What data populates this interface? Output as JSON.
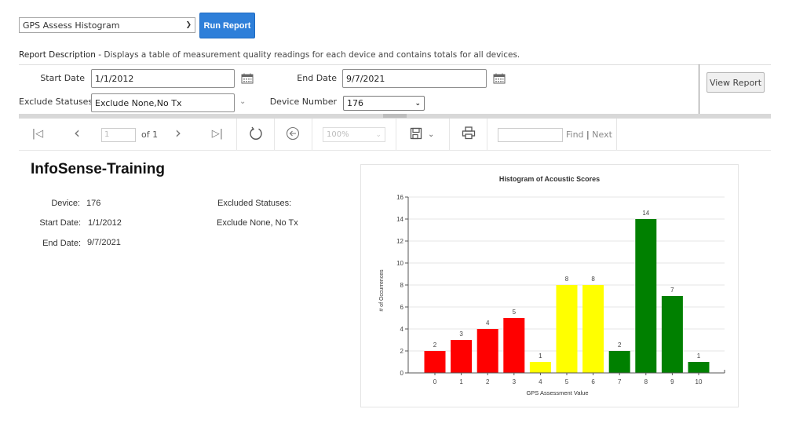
{
  "top_bar": {
    "report_select_value": "GPS Assess Histogram",
    "run_button": "Run Report",
    "description_label": "Report Description",
    "description_text": " - Displays a table of measurement quality readings for each device and contains totals for all devices."
  },
  "parameters": {
    "start_date_label": "Start Date",
    "start_date_value": "1/1/2012",
    "end_date_label": "End Date",
    "end_date_value": "9/7/2021",
    "exclude_statuses_label": "Exclude Statuses",
    "exclude_statuses_value": "Exclude None,No Tx",
    "device_number_label": "Device Number",
    "device_number_value": "176",
    "view_report_button": "View Report"
  },
  "toolbar": {
    "first_page_icon": "first-page-icon",
    "prev_page_icon": "prev-page-icon",
    "page_value": "1",
    "page_of": "of 1",
    "next_page_icon": "next-page-icon",
    "last_page_icon": "last-page-icon",
    "refresh_icon": "refresh-icon",
    "back_icon": "back-icon",
    "zoom_value": "100%",
    "save_icon": "save-icon",
    "print_icon": "print-icon",
    "find_value": "",
    "find_label": "Find",
    "find_separator": "|",
    "next_label": "Next"
  },
  "report": {
    "title": "InfoSense-Training",
    "device_label": "Device:",
    "device_value": "176",
    "start_date_label": "Start Date:",
    "start_date_value": "1/1/2012",
    "end_date_label": "End Date:",
    "end_date_value": "9/7/2021",
    "excluded_statuses_label": "Excluded Statuses:",
    "excluded_statuses_value": "Exclude None, No Tx"
  },
  "chart_data": {
    "type": "bar",
    "title": "Histogram of Acoustic Scores",
    "xlabel": "GPS Assessment Value",
    "ylabel": "# of Occurrences",
    "categories": [
      "0",
      "1",
      "2",
      "3",
      "4",
      "5",
      "6",
      "7",
      "8",
      "9",
      "10"
    ],
    "values": [
      2,
      3,
      4,
      5,
      1,
      8,
      8,
      2,
      14,
      7,
      1
    ],
    "bar_colors": [
      "#ff0000",
      "#ff0000",
      "#ff0000",
      "#ff0000",
      "#ffff00",
      "#ffff00",
      "#ffff00",
      "#008000",
      "#008000",
      "#008000",
      "#008000"
    ],
    "data_labels": true,
    "ylim": [
      0,
      16
    ],
    "yticks": [
      0,
      2,
      4,
      6,
      8,
      10,
      12,
      14,
      16
    ],
    "grid": true,
    "legend": "none"
  }
}
